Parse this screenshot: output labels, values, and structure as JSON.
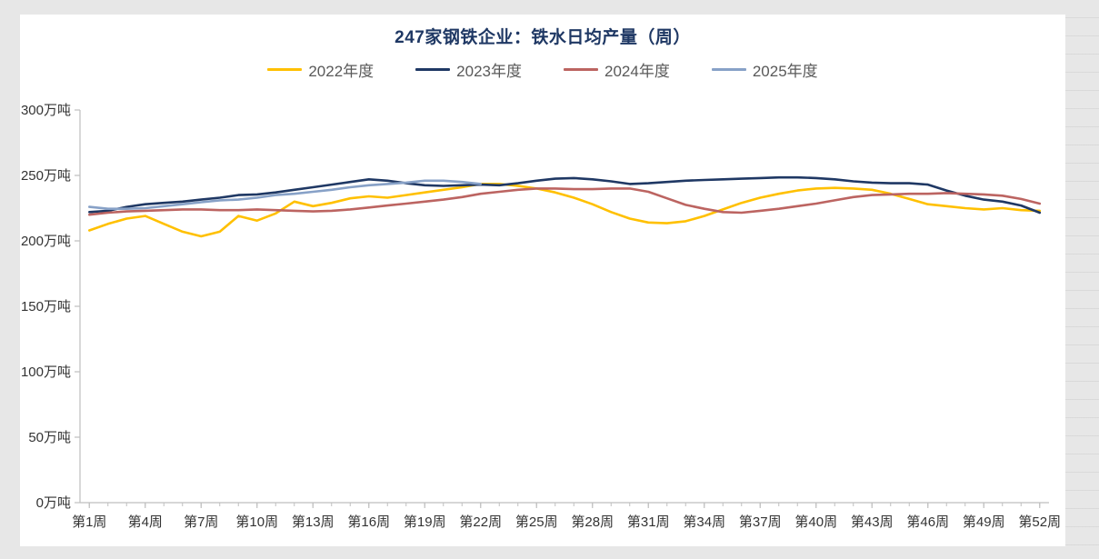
{
  "page": {
    "background_color": "#e7e7e7",
    "panel_color": "#ffffff"
  },
  "chart_data": {
    "type": "line",
    "title": "247家钢铁企业：铁水日均产量（周）",
    "title_color": "#1f3864",
    "xlabel": "",
    "ylabel": "",
    "ylim": [
      0,
      300
    ],
    "grid": false,
    "legend_position": "top-center",
    "axis_color": "#bfbfbf",
    "tick_label_color": "#333333",
    "y_tick_values": [
      0,
      50,
      100,
      150,
      200,
      250,
      300
    ],
    "y_tick_labels": [
      "0万吨",
      "50万吨",
      "100万吨",
      "150万吨",
      "200万吨",
      "250万吨",
      "300万吨"
    ],
    "x_tick_weeks": [
      1,
      4,
      7,
      10,
      13,
      16,
      19,
      22,
      25,
      28,
      31,
      34,
      37,
      40,
      43,
      46,
      49,
      52
    ],
    "x_tick_labels": [
      "第1周",
      "第4周",
      "第7周",
      "第10周",
      "第13周",
      "第16周",
      "第19周",
      "第22周",
      "第25周",
      "第28周",
      "第31周",
      "第34周",
      "第37周",
      "第40周",
      "第43周",
      "第46周",
      "第49周",
      "第52周"
    ],
    "x_total_weeks": 52,
    "unit": "万吨",
    "series": [
      {
        "name": "2022年度",
        "color": "#FFC000",
        "start_week": 1,
        "values": [
          208,
          213,
          217,
          219,
          213,
          207,
          203.5,
          207,
          219,
          215.5,
          221,
          230,
          226.5,
          229,
          232.5,
          234,
          233,
          235,
          237,
          239,
          241,
          243.5,
          243.5,
          242,
          240,
          237,
          233,
          228,
          222,
          217,
          214,
          213.5,
          215,
          219,
          224,
          229,
          233,
          236,
          238.5,
          240,
          240.5,
          240,
          239,
          236,
          232,
          228,
          226.5,
          225,
          224,
          225,
          223.5,
          223
        ]
      },
      {
        "name": "2023年度",
        "color": "#1F3864",
        "start_week": 1,
        "values": [
          222,
          223,
          226,
          228,
          229,
          230,
          231.5,
          233,
          235,
          235.5,
          237,
          239,
          241,
          243,
          245,
          247,
          246,
          244,
          242.5,
          242,
          242.5,
          243,
          242.5,
          244,
          246,
          247.5,
          248,
          247,
          245.5,
          243.5,
          244,
          245,
          246,
          246.5,
          247,
          247.5,
          248,
          248.5,
          248.5,
          248,
          247,
          245.5,
          244.5,
          244,
          244,
          243,
          238.5,
          234.5,
          231.5,
          230,
          227,
          221.5
        ]
      },
      {
        "name": "2024年度",
        "color": "#BC6461",
        "start_week": 1,
        "values": [
          220,
          221.5,
          222.5,
          223,
          223.5,
          224,
          224,
          223.5,
          223.5,
          224,
          223.5,
          223,
          222.5,
          223,
          224,
          225.5,
          227,
          228.5,
          230,
          231.5,
          233.5,
          236,
          237.5,
          239,
          240,
          240,
          239.5,
          239.5,
          240,
          240,
          237.5,
          232.5,
          227.5,
          224.5,
          222,
          221.5,
          223,
          224.5,
          226.5,
          228.5,
          231,
          233.5,
          235,
          235.5,
          236,
          236,
          236.5,
          236,
          235.5,
          234.5,
          232,
          228.5
        ]
      },
      {
        "name": "2025年度",
        "color": "#87A1C7",
        "start_week": 1,
        "values": [
          226,
          224.5,
          224.5,
          225,
          226.5,
          228,
          229.5,
          231,
          231.5,
          233,
          235,
          236,
          237.5,
          239,
          241,
          242.5,
          243.5,
          244.5,
          246,
          246,
          245,
          243.5
        ]
      }
    ]
  }
}
